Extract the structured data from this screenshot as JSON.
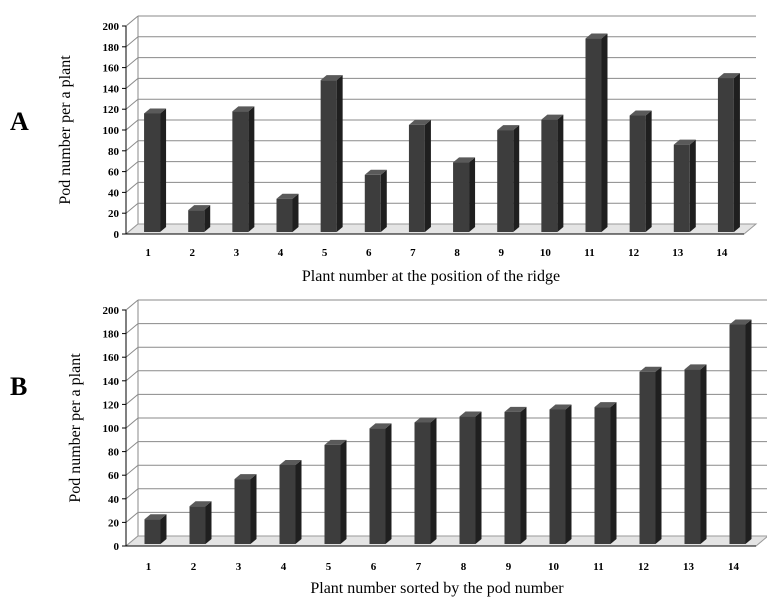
{
  "chart_data": [
    {
      "panel_label": "A",
      "type": "bar",
      "categories": [
        "1",
        "2",
        "3",
        "4",
        "5",
        "6",
        "7",
        "8",
        "9",
        "10",
        "11",
        "12",
        "13",
        "14"
      ],
      "values": [
        114,
        21,
        116,
        32,
        146,
        55,
        103,
        67,
        98,
        108,
        186,
        112,
        84,
        148
      ],
      "xlabel": "Plant number at the position of the ridge",
      "ylabel": "Pod number per a plant",
      "ylim": [
        0,
        200
      ],
      "yticks": [
        "0",
        "20",
        "40",
        "60",
        "80",
        "100",
        "120",
        "140",
        "160",
        "180",
        "200"
      ],
      "grid": true,
      "bar_color": "#3d3d3d",
      "style": "3d-bar"
    },
    {
      "panel_label": "B",
      "type": "bar",
      "categories": [
        "1",
        "2",
        "3",
        "4",
        "5",
        "6",
        "7",
        "8",
        "9",
        "10",
        "11",
        "12",
        "13",
        "14"
      ],
      "values": [
        21,
        32,
        55,
        67,
        84,
        98,
        103,
        108,
        112,
        114,
        116,
        146,
        148,
        186
      ],
      "xlabel": "Plant number sorted by the pod number",
      "ylabel": "Pod number per a plant",
      "ylim": [
        0,
        200
      ],
      "yticks": [
        "0",
        "20",
        "40",
        "60",
        "80",
        "100",
        "120",
        "140",
        "160",
        "180",
        "200"
      ],
      "grid": true,
      "bar_color": "#3d3d3d",
      "style": "3d-bar"
    }
  ]
}
